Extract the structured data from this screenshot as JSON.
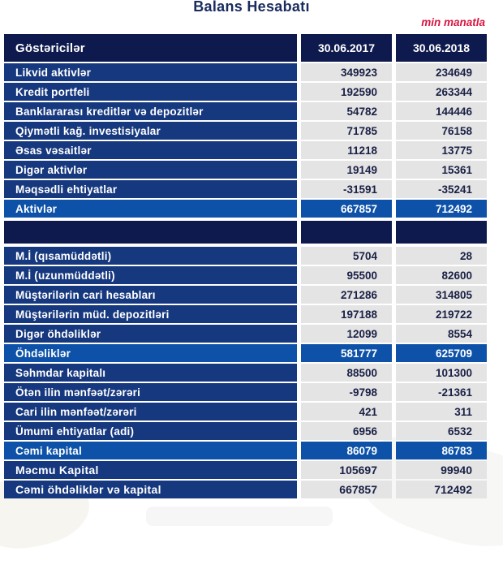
{
  "page": {
    "title": "Balans Hesabatı",
    "unit_note": "min manatla"
  },
  "colors": {
    "header_bg": "#0e1a4e",
    "label_bg": "#16387e",
    "total_bg": "#0d52a8",
    "value_cell_bg": "#e4e4e4",
    "value_text": "#1a2045",
    "title_color": "#1a2b5e",
    "accent_red": "#d91540"
  },
  "table": {
    "header": {
      "label": "Göstəricilər",
      "col_2017": "30.06.2017",
      "col_2018": "30.06.2018"
    },
    "rows": [
      {
        "type": "item",
        "label": "Likvid aktivlər",
        "v2017": "349923",
        "v2018": "234649"
      },
      {
        "type": "item",
        "label": "Kredit portfeli",
        "v2017": "192590",
        "v2018": "263344"
      },
      {
        "type": "item",
        "label": "Banklararası kreditlər və depozitlər",
        "v2017": "54782",
        "v2018": "144446"
      },
      {
        "type": "item",
        "label": "Qiymətli kağ. investisiyalar",
        "v2017": "71785",
        "v2018": "76158"
      },
      {
        "type": "item",
        "label": "Əsas vəsaitlər",
        "v2017": "11218",
        "v2018": "13775"
      },
      {
        "type": "item",
        "label": "Digər aktivlər",
        "v2017": "19149",
        "v2018": "15361"
      },
      {
        "type": "item",
        "label": "Məqsədli ehtiyatlar",
        "v2017": "-31591",
        "v2018": "-35241"
      },
      {
        "type": "total",
        "label": "Aktivlər",
        "v2017": "667857",
        "v2018": "712492"
      },
      {
        "type": "separator",
        "label": "",
        "v2017": "",
        "v2018": ""
      },
      {
        "type": "item",
        "label": "M.İ (qısamüddətli)",
        "v2017": "5704",
        "v2018": "28"
      },
      {
        "type": "item",
        "label": "M.İ (uzunmüddətli)",
        "v2017": "95500",
        "v2018": "82600"
      },
      {
        "type": "item",
        "label": "Müştərilərin cari hesabları",
        "v2017": "271286",
        "v2018": "314805"
      },
      {
        "type": "item",
        "label": "Müştərilərin müd. depozitləri",
        "v2017": "197188",
        "v2018": "219722"
      },
      {
        "type": "item",
        "label": "Digər öhdəliklər",
        "v2017": "12099",
        "v2018": "8554"
      },
      {
        "type": "total",
        "label": "Öhdəliklər",
        "v2017": "581777",
        "v2018": "625709"
      },
      {
        "type": "item",
        "label": "Səhmdar kapitalı",
        "v2017": "88500",
        "v2018": "101300"
      },
      {
        "type": "item",
        "label": "Ötən ilin mənfəət/zərəri",
        "v2017": "-9798",
        "v2018": "-21361"
      },
      {
        "type": "item",
        "label": "Cari ilin mənfəət/zərəri",
        "v2017": "421",
        "v2018": "311"
      },
      {
        "type": "item",
        "label": "Ümumi ehtiyatlar (adi)",
        "v2017": "6956",
        "v2018": "6532"
      },
      {
        "type": "total",
        "label": "Cəmi kapital",
        "v2017": "86079",
        "v2018": "86783"
      },
      {
        "type": "bold",
        "label": "Məcmu Kapital",
        "v2017": "105697",
        "v2018": "99940"
      },
      {
        "type": "bold",
        "label": "Cəmi öhdəliklər və kapital",
        "v2017": "667857",
        "v2018": "712492"
      }
    ]
  }
}
